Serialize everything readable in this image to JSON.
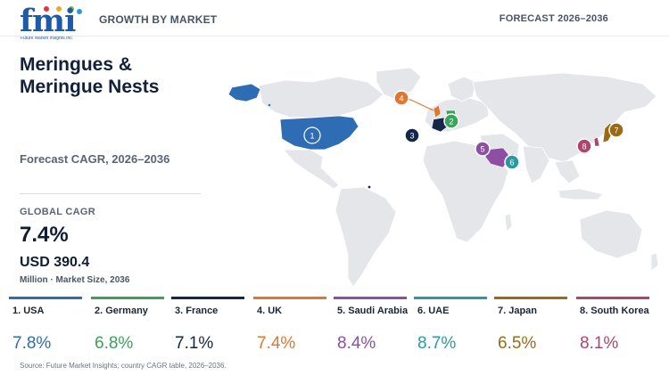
{
  "header": {
    "logo_text": "fmi",
    "logo_tagline": "Future Market Insights Inc.",
    "section_label": "GROWTH BY MARKET",
    "forecast_label": "FORECAST 2026–2036"
  },
  "title": "Meringues & Meringue Nests",
  "subtitle": "Forecast CAGR, 2026–2036",
  "global": {
    "label": "GLOBAL CAGR",
    "cagr": "7.4%",
    "market_size": "USD 390.4",
    "market_caption": "Million · Market Size, 2036"
  },
  "colors": {
    "USA": "#2e6db4",
    "Germany": "#3aa35b",
    "France": "#14264a",
    "UK": "#e07630",
    "Saudi Arabia": "#8e4ea3",
    "UAE": "#2a9aa0",
    "Japan": "#9a6a16",
    "South Korea": "#b0456a"
  },
  "countries": [
    {
      "rank": "1",
      "label": "1. USA",
      "cagr": "7.8%",
      "color": "#2e6db4"
    },
    {
      "rank": "2",
      "label": "2. Germany",
      "cagr": "6.8%",
      "color": "#3aa35b"
    },
    {
      "rank": "3",
      "label": "3. France",
      "cagr": "7.1%",
      "color": "#14264a"
    },
    {
      "rank": "4",
      "label": "4. UK",
      "cagr": "7.4%",
      "color": "#e07630"
    },
    {
      "rank": "5",
      "label": "5. Saudi Arabia",
      "cagr": "8.4%",
      "color": "#8e4ea3"
    },
    {
      "rank": "6",
      "label": "6. UAE",
      "cagr": "8.7%",
      "color": "#2a9aa0"
    },
    {
      "rank": "7",
      "label": "7. Japan",
      "cagr": "6.5%",
      "color": "#9a6a16"
    },
    {
      "rank": "8",
      "label": "8. South Korea",
      "cagr": "8.1%",
      "color": "#b0456a"
    }
  ],
  "source": "Source: Future Market Insights; country CAGR table, 2026–2036."
}
